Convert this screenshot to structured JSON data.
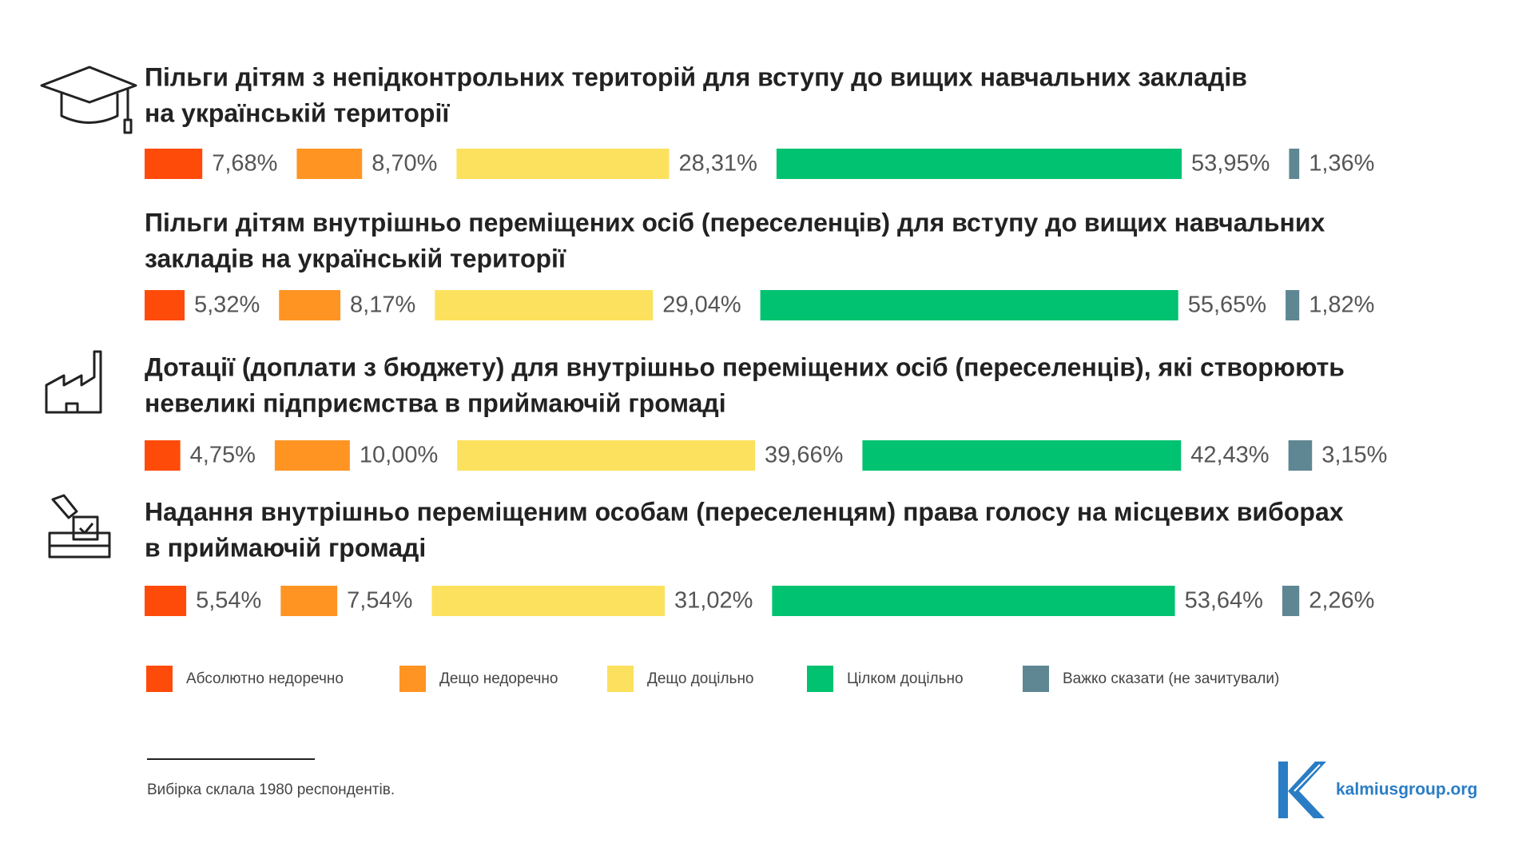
{
  "chart_data": {
    "type": "segmented-bar",
    "categories": [
      [
        "Пільги дітям з непідконтрольних територій для вступу до вищих навчальних закладів",
        "на українській території"
      ],
      [
        "Пільги дітям внутрішньо переміщених осіб (переселенців) для вступу до вищих навчальних",
        "закладів на українській території"
      ],
      [
        "Дотації (доплати з бюджету) для внутрішньо переміщених осіб (переселенців), які створюють",
        "невеликі підприємства в приймаючій громаді"
      ],
      [
        "Надання внутрішньо переміщеним особам (переселенцям) права голосу на місцевих виборах",
        "в приймаючій громаді"
      ]
    ],
    "series": [
      {
        "name": "Абсолютно недоречно",
        "color": "#ff4b0a",
        "values": [
          7.68,
          5.32,
          4.75,
          5.54
        ],
        "value_labels": [
          "7,68%",
          "5,32%",
          "4,75%",
          "5,54%"
        ]
      },
      {
        "name": "Дещо недоречно",
        "color": "#ff9423",
        "values": [
          8.7,
          8.17,
          10.0,
          7.54
        ],
        "value_labels": [
          "8,70%",
          "8,17%",
          "10,00%",
          "7,54%"
        ]
      },
      {
        "name": "Дещо доцільно",
        "color": "#fce15e",
        "values": [
          28.31,
          29.04,
          39.66,
          31.02
        ],
        "value_labels": [
          "28,31%",
          "29,04%",
          "39,66%",
          "31,02%"
        ]
      },
      {
        "name": "Цілком доцільно",
        "color": "#00c270",
        "values": [
          53.95,
          55.65,
          42.43,
          53.64
        ],
        "value_labels": [
          "53,95%",
          "55,65%",
          "42,43%",
          "53,64%"
        ]
      },
      {
        "name": "Важко сказати (не зачитували)",
        "color": "#5f8793",
        "values": [
          1.36,
          1.82,
          3.15,
          2.26
        ],
        "value_labels": [
          "1,36%",
          "1,82%",
          "3,15%",
          "2,26%"
        ]
      }
    ]
  },
  "note": "Вибірка склала 1980 респондентів.",
  "brand": "kalmiusgroup.org"
}
